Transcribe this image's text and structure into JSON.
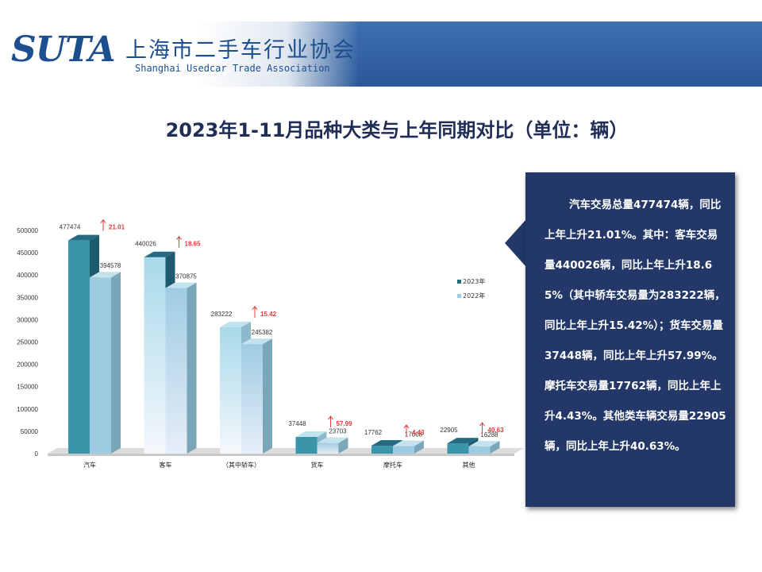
{
  "header": {
    "logo_mark": "SUTA",
    "logo_cn": "上海市二手车行业协会",
    "logo_en": "Shanghai Usedcar Trade Association"
  },
  "slide": {
    "title": "2023年1-11月品种大类与上年同期对比（单位：辆）"
  },
  "note": {
    "text": "汽车交易总量477474辆，同比上年上升21.01%。其中：客车交易量440026辆，同比上年上升18.65%（其中轿车交易量为283222辆，同比上年上升15.42%）；货车交易量37448辆，同比上年上升57.99%。摩托车交易量17762辆，同比上年上升4.43%。其他类车辆交易量22905辆，同比上年上升40.63%。"
  },
  "chart_data": {
    "type": "bar",
    "categories": [
      "汽车",
      "客车",
      "（其中轿车）",
      "货车",
      "摩托车",
      "其他"
    ],
    "series": [
      {
        "name": "2023年",
        "values": [
          477474,
          440026,
          283222,
          37448,
          17762,
          22905
        ]
      },
      {
        "name": "2022年",
        "values": [
          394578,
          370875,
          245382,
          23703,
          17008,
          16288
        ]
      }
    ],
    "growth": [
      "21.01",
      "18.65",
      "15.42",
      "57.99",
      "4.43",
      "40.63"
    ],
    "ylim": [
      0,
      500000
    ],
    "yticks": [
      "0",
      "50000",
      "100000",
      "150000",
      "200000",
      "250000",
      "300000",
      "350000",
      "400000",
      "450000",
      "500000"
    ],
    "grid": false,
    "legend_position": "right",
    "colors": {
      "c2023_front": "#3a94aa",
      "c2023_top": "#266a80",
      "c2023_side": "#1e5a6e",
      "c2022_front": "#9ecbe0",
      "c2022_top": "#c4e2ee",
      "c2022_side": "#7aa6b9",
      "growth": "#e03a3a",
      "floor": "#dcdcdc"
    }
  }
}
